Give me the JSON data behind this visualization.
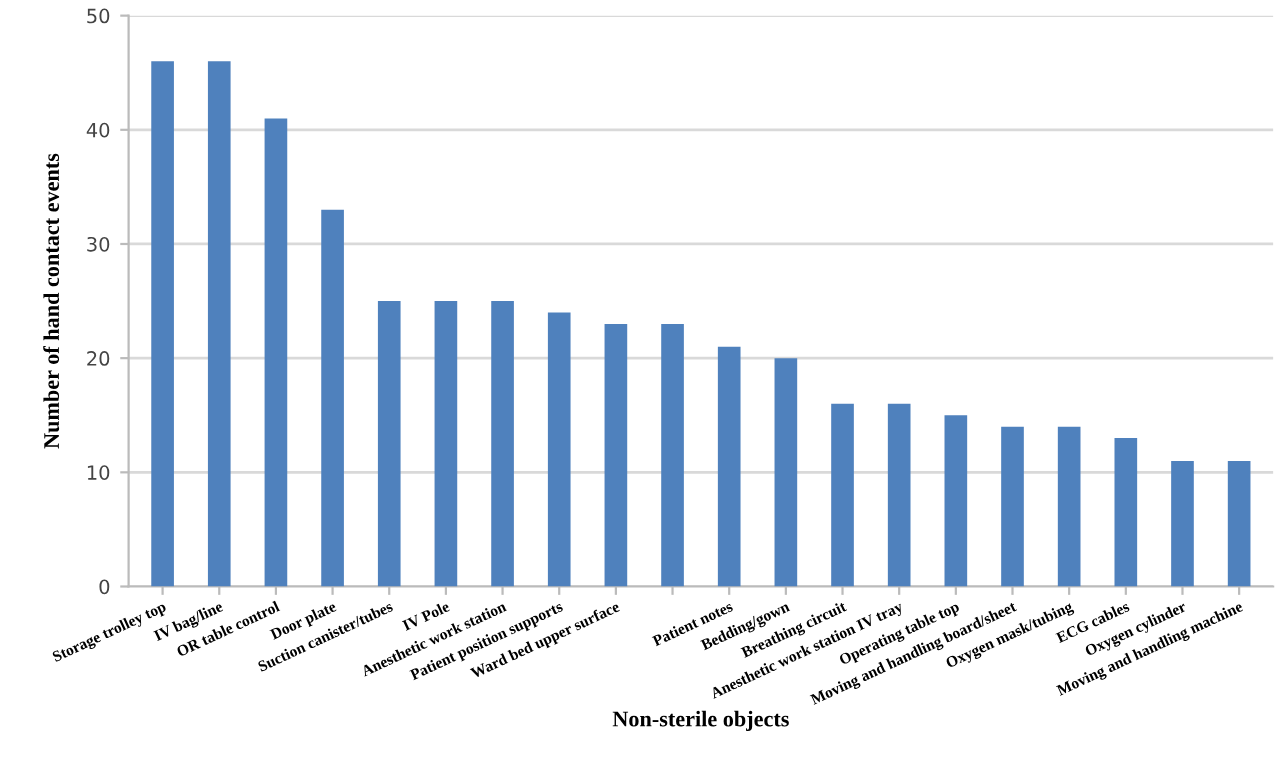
{
  "chart_data": {
    "type": "bar",
    "xlabel": "Non-sterile objects",
    "ylabel": "Number of hand contact events",
    "categories": [
      "Storage trolley top",
      "IV bag/line",
      "OR table control",
      "Door plate",
      "Suction canister/tubes",
      "IV Pole",
      "Anesthetic work station",
      "Patient position supports",
      "Ward bed upper surface",
      null,
      "Patient notes",
      "Bedding/gown",
      "Breathing circuit",
      "Anesthetic work station IV tray",
      "Operating table top",
      "Moving and handling board/sheet",
      "Oxygen mask/tubing",
      "ECG cables",
      "Oxygen cylinder",
      "Moving and handling machine"
    ],
    "values": [
      46,
      46,
      41,
      33,
      25,
      25,
      25,
      24,
      23,
      23,
      21,
      20,
      16,
      16,
      15,
      14,
      14,
      13,
      11,
      11
    ],
    "color": "#4f81bd",
    "ylim": [
      0,
      50
    ],
    "yticks": [
      0,
      10,
      20,
      30,
      40,
      50
    ],
    "grid": "y",
    "legend": false
  }
}
